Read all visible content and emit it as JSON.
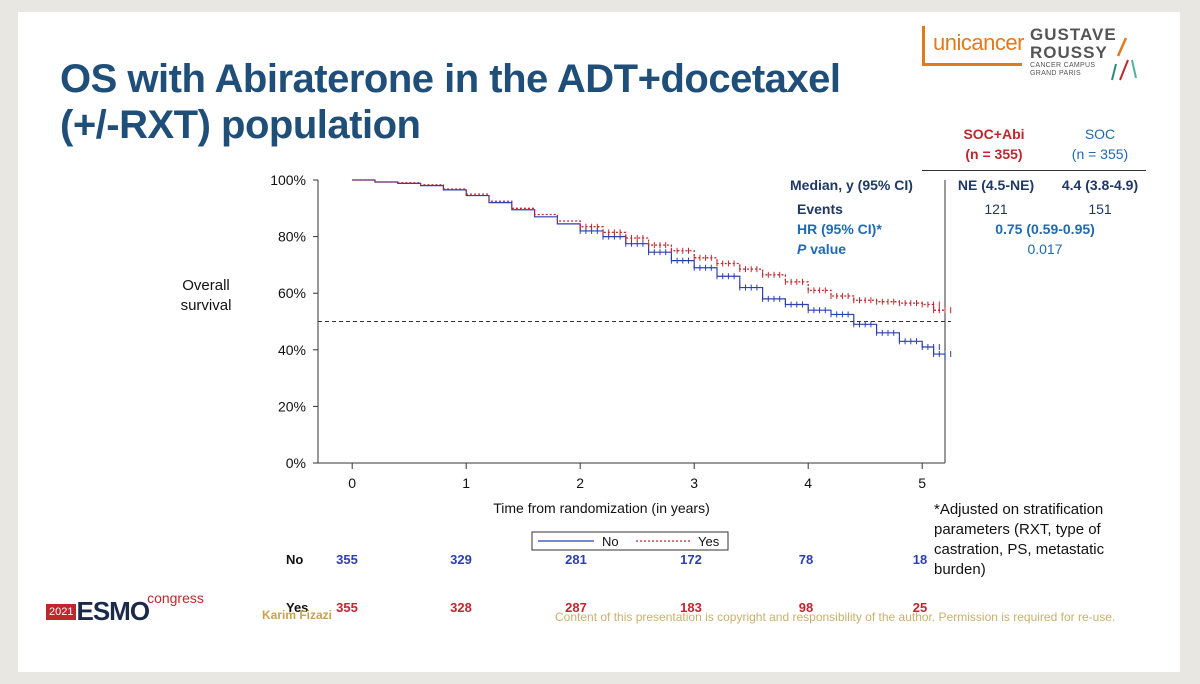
{
  "title": {
    "line1": "OS with Abiraterone in the ADT+docetaxel",
    "line2": "(+/-RXT) population"
  },
  "logos": {
    "unicancer": "unicancer",
    "gustave_roussy_l1": "GUSTAVE",
    "gustave_roussy_l2": "ROUSSY",
    "gustave_roussy_sub1": "CANCER CAMPUS",
    "gustave_roussy_sub2": "GRAND PARIS",
    "esmo_year": "2021",
    "esmo_name": "ESMO",
    "esmo_congress": "congress"
  },
  "stats_table": {
    "col_abi_l1": "SOC+Abi",
    "col_abi_l2": "(n = 355)",
    "col_soc_l1": "SOC",
    "col_soc_l2": "(n = 355)",
    "median_label": "Median, y (95% CI)",
    "median_abi": "NE (4.5-NE)",
    "median_soc": "4.4 (3.8-4.9)",
    "events_label": "Events",
    "events_abi": "121",
    "events_soc": "151",
    "hr_label": "HR (95% CI)*",
    "hr_value": "0.75 (0.59-0.95)",
    "p_label_italic": "P",
    "p_label_rest": " value",
    "p_value": "0.017"
  },
  "y_axis_title_l1": "Overall",
  "y_axis_title_l2": "survival",
  "footnote": "*Adjusted on stratification parameters (RXT, type of castration, PS, metastatic burden)",
  "risk_table": {
    "rows": [
      {
        "label": "No",
        "values": [
          "355",
          "329",
          "281",
          "172",
          "78",
          "18"
        ]
      },
      {
        "label": "Yes",
        "values": [
          "355",
          "328",
          "287",
          "183",
          "98",
          "25"
        ]
      }
    ]
  },
  "presenter": "Karim Fizazi",
  "copyright": "Content of this presentation is copyright and responsibility of the author. Permission is required for re-use.",
  "colors": {
    "title": "#1f4e79",
    "abi_red": "#c0262d",
    "soc_blue": "#2b3fb0",
    "unicancer_orange": "#e07a1f"
  },
  "chart_data": {
    "type": "line",
    "subtype": "kaplan-meier",
    "xlabel": "Time from randomization (in years)",
    "ylabel": "Overall survival",
    "xlim": [
      -0.3,
      5.2
    ],
    "ylim": [
      0,
      100
    ],
    "x_ticks": [
      0,
      1,
      2,
      3,
      4,
      5
    ],
    "y_ticks": [
      0,
      20,
      40,
      60,
      80,
      100
    ],
    "y_tick_labels": [
      "0%",
      "20%",
      "40%",
      "60%",
      "80%",
      "100%"
    ],
    "reference_line": {
      "y": 50,
      "style": "dashed"
    },
    "legend": {
      "position": "bottom-center",
      "entries": [
        "No",
        "Yes"
      ]
    },
    "series": [
      {
        "name": "No",
        "style": "solid",
        "color": "#2b3fb0",
        "x": [
          0,
          0.2,
          0.4,
          0.6,
          0.8,
          1.0,
          1.2,
          1.4,
          1.6,
          1.8,
          2.0,
          2.2,
          2.4,
          2.6,
          2.8,
          3.0,
          3.2,
          3.4,
          3.6,
          3.8,
          4.0,
          4.2,
          4.4,
          4.6,
          4.8,
          5.0,
          5.1,
          5.2
        ],
        "y": [
          100,
          99.3,
          98.8,
          98,
          96.5,
          94.5,
          92,
          89.5,
          87,
          84.5,
          82,
          80,
          77.5,
          74.5,
          71.5,
          69,
          66,
          62,
          58,
          56,
          54,
          52.5,
          49,
          46,
          43,
          41,
          38.5,
          36.5
        ]
      },
      {
        "name": "Yes",
        "style": "dotted",
        "color": "#c0262d",
        "x": [
          0,
          0.2,
          0.4,
          0.6,
          0.8,
          1.0,
          1.2,
          1.4,
          1.6,
          1.8,
          2.0,
          2.2,
          2.4,
          2.6,
          2.8,
          3.0,
          3.2,
          3.4,
          3.6,
          3.8,
          4.0,
          4.2,
          4.4,
          4.6,
          4.8,
          5.0,
          5.1,
          5.2
        ],
        "y": [
          100,
          99.3,
          99,
          98.3,
          96.8,
          95,
          92.5,
          90,
          87.8,
          85.5,
          83.5,
          81.5,
          79.5,
          77,
          75,
          72.5,
          70.5,
          68.5,
          66.5,
          64,
          61,
          59,
          57.5,
          57,
          56.5,
          56,
          54,
          54
        ]
      }
    ]
  }
}
